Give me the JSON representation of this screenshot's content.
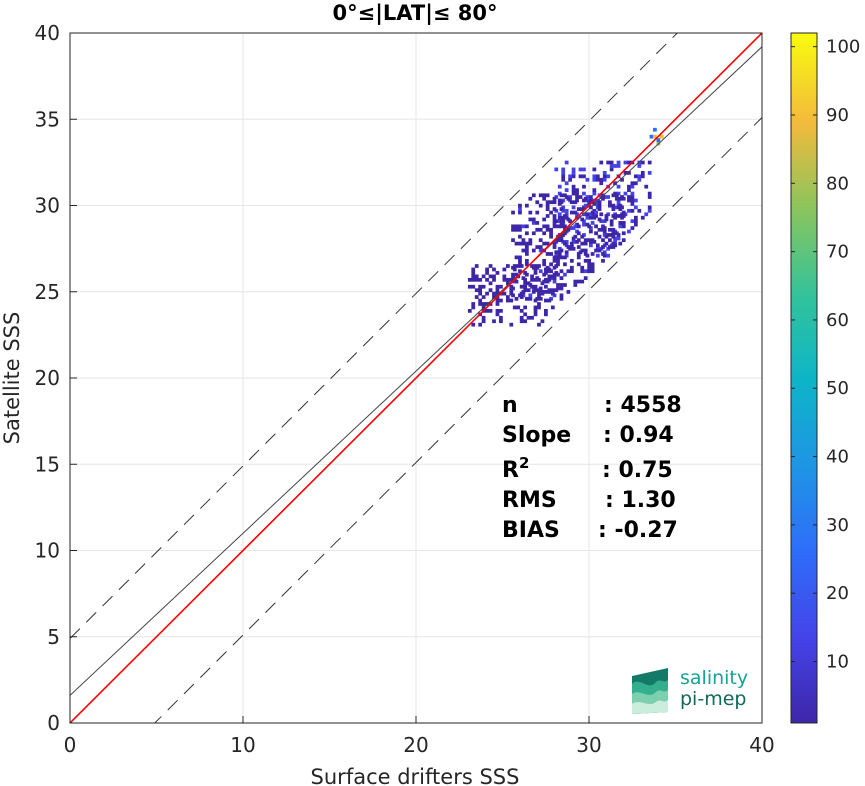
{
  "chart_data": {
    "type": "heatmap",
    "title": "0°≤|LAT|≤ 80°",
    "xlabel": "Surface drifters SSS",
    "ylabel": "Satellite SSS",
    "xlim": [
      0,
      40
    ],
    "ylim": [
      0,
      40
    ],
    "xticks": [
      "0",
      "10",
      "20",
      "30",
      "40"
    ],
    "yticks": [
      "0",
      "5",
      "10",
      "15",
      "20",
      "25",
      "30",
      "35",
      "40"
    ],
    "grid": true,
    "colorbar": {
      "range": [
        1,
        102
      ],
      "ticks": [
        "10",
        "20",
        "30",
        "40",
        "50",
        "60",
        "70",
        "80",
        "90",
        "100"
      ],
      "colormap": "parula"
    },
    "lines": {
      "identity": {
        "x": [
          0,
          40
        ],
        "y": [
          0,
          40
        ],
        "color": "#ff0000"
      },
      "regression": {
        "x": [
          0,
          40
        ],
        "y": [
          1.6,
          39.2
        ],
        "color": "#444444"
      },
      "upper_bound": {
        "x": [
          0,
          40
        ],
        "y": [
          4.9,
          44.9
        ],
        "style": "dashed"
      },
      "lower_bound": {
        "x": [
          0,
          40
        ],
        "y": [
          -4.9,
          35.1
        ],
        "style": "dashed"
      }
    },
    "density_clusters": [
      {
        "x": [
          28.0,
          33.5
        ],
        "y": [
          27.0,
          32.5
        ],
        "value_range": [
          1,
          15
        ]
      },
      {
        "x": [
          25.5,
          32.0
        ],
        "y": [
          24.5,
          30.5
        ],
        "value_range": [
          1,
          8
        ]
      },
      {
        "x": [
          23.0,
          28.0
        ],
        "y": [
          23.0,
          26.5
        ],
        "value_range": [
          1,
          3
        ]
      },
      {
        "x": [
          33.5,
          34.2
        ],
        "y": [
          33.5,
          34.5
        ],
        "value_range": [
          20,
          102
        ]
      }
    ],
    "stats": [
      {
        "label": "n",
        "sep": ": 4558"
      },
      {
        "label": "Slope",
        "sep": ": 0.94"
      },
      {
        "label": "R",
        "sup": "2",
        "sep": ": 0.75"
      },
      {
        "label": "RMS",
        "sep": ": 1.30"
      },
      {
        "label": "BIAS",
        "sep": ": -0.27"
      }
    ]
  },
  "logo": {
    "line1": "salinity",
    "line2": "pi-mep"
  }
}
